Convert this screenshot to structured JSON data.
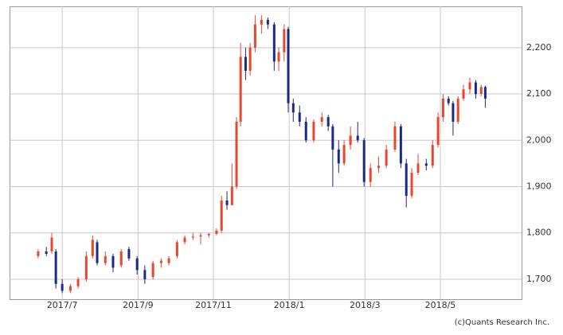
{
  "chart_data": {
    "type": "candlestick",
    "x": [
      2017.447,
      2017.465,
      2017.477,
      2017.486,
      2017.5,
      2017.518,
      2017.535,
      2017.553,
      2017.567,
      2017.577,
      2017.595,
      2017.612,
      2017.63,
      2017.647,
      2017.665,
      2017.682,
      2017.7,
      2017.718,
      2017.735,
      2017.753,
      2017.77,
      2017.788,
      2017.805,
      2017.823,
      2017.84,
      2017.851,
      2017.863,
      2017.874,
      2017.884,
      2017.893,
      2017.904,
      2017.914,
      2017.925,
      2017.939,
      2017.953,
      2017.967,
      2017.977,
      2017.989,
      2017.998,
      2018.009,
      2018.023,
      2018.037,
      2018.054,
      2018.072,
      2018.086,
      2018.096,
      2018.109,
      2018.121,
      2018.135,
      2018.151,
      2018.165,
      2018.179,
      2018.197,
      2018.214,
      2018.233,
      2018.246,
      2018.258,
      2018.27,
      2018.284,
      2018.302,
      2018.316,
      2018.328,
      2018.339,
      2018.351,
      2018.361,
      2018.372,
      2018.384,
      2018.398,
      2018.411,
      2018.423,
      2018.432
    ],
    "open": [
      1750,
      1760,
      1760,
      1760,
      1690,
      1675,
      1685,
      1700,
      1750,
      1780,
      1735,
      1750,
      1730,
      1765,
      1745,
      1720,
      1705,
      1735,
      1735,
      1750,
      1780,
      1790,
      1792,
      1795,
      1798,
      1805,
      1870,
      1860,
      1900,
      2040,
      2180,
      2150,
      2200,
      2250,
      2260,
      2250,
      2170,
      2190,
      2240,
      2080,
      2060,
      2040,
      2000,
      2040,
      2050,
      2030,
      1980,
      1950,
      1990,
      2010,
      2000,
      1910,
      1940,
      1945,
      1980,
      2030,
      1950,
      1880,
      1930,
      1950,
      1945,
      1990,
      2050,
      2090,
      2080,
      2040,
      2090,
      2110,
      2125,
      2100,
      2115
    ],
    "high": [
      1765,
      1770,
      1800,
      1765,
      1700,
      1690,
      1705,
      1760,
      1795,
      1785,
      1760,
      1755,
      1765,
      1770,
      1750,
      1730,
      1740,
      1745,
      1750,
      1785,
      1795,
      1800,
      1800,
      1800,
      1810,
      1880,
      1890,
      1950,
      2050,
      2210,
      2200,
      2210,
      2270,
      2270,
      2265,
      2255,
      2200,
      2250,
      2245,
      2090,
      2075,
      2050,
      2045,
      2060,
      2055,
      2035,
      2000,
      2000,
      2030,
      2040,
      2005,
      1950,
      1965,
      1990,
      2040,
      2035,
      1960,
      1940,
      1970,
      1960,
      2000,
      2060,
      2100,
      2095,
      2085,
      2095,
      2120,
      2135,
      2130,
      2120,
      2118
    ],
    "low": [
      1745,
      1750,
      1755,
      1680,
      1670,
      1670,
      1680,
      1695,
      1745,
      1730,
      1730,
      1715,
      1725,
      1740,
      1710,
      1690,
      1700,
      1725,
      1730,
      1745,
      1775,
      1785,
      1775,
      1790,
      1795,
      1800,
      1850,
      1860,
      1895,
      2030,
      2130,
      2140,
      2190,
      2230,
      2240,
      2150,
      2150,
      2170,
      2060,
      2040,
      2030,
      1995,
      1995,
      2030,
      2020,
      1900,
      1930,
      1945,
      1980,
      1995,
      1900,
      1900,
      1930,
      1940,
      1975,
      1940,
      1855,
      1875,
      1925,
      1935,
      1940,
      1985,
      2040,
      2075,
      2010,
      2035,
      2085,
      2100,
      2090,
      2095,
      2070
    ],
    "close": [
      1760,
      1755,
      1790,
      1690,
      1675,
      1685,
      1700,
      1750,
      1785,
      1735,
      1750,
      1725,
      1760,
      1745,
      1720,
      1700,
      1735,
      1740,
      1745,
      1780,
      1790,
      1792,
      1795,
      1798,
      1805,
      1870,
      1860,
      1900,
      2040,
      2180,
      2150,
      2200,
      2250,
      2260,
      2250,
      2170,
      2190,
      2240,
      2080,
      2060,
      2040,
      2000,
      2040,
      2050,
      2030,
      1980,
      1950,
      1990,
      2010,
      2000,
      1910,
      1940,
      1945,
      1980,
      2030,
      1950,
      1880,
      1930,
      1950,
      1945,
      1990,
      2050,
      2090,
      2080,
      2040,
      2090,
      2110,
      2125,
      2100,
      2115,
      2090
    ],
    "up_color": "#e8472f",
    "down_color": "#1c2a85",
    "xlim": [
      2017.384,
      2018.512
    ],
    "xticks": [
      {
        "value": 2017.5,
        "label": "2017/7"
      },
      {
        "value": 2017.667,
        "label": "2017/9"
      },
      {
        "value": 2017.833,
        "label": "2017/11"
      },
      {
        "value": 2018.0,
        "label": "2018/1"
      },
      {
        "value": 2018.167,
        "label": "2018/3"
      },
      {
        "value": 2018.333,
        "label": "2018/5"
      }
    ],
    "ylim": [
      1657,
      2289
    ],
    "yticks": [
      {
        "value": 1700,
        "label": "1,700"
      },
      {
        "value": 1800,
        "label": "1,800"
      },
      {
        "value": 1900,
        "label": "1,900"
      },
      {
        "value": 2000,
        "label": "2,000"
      },
      {
        "value": 2100,
        "label": "2,100"
      },
      {
        "value": 2200,
        "label": "2,200"
      }
    ],
    "grid": true,
    "credit": "(c)Quants Research Inc."
  }
}
